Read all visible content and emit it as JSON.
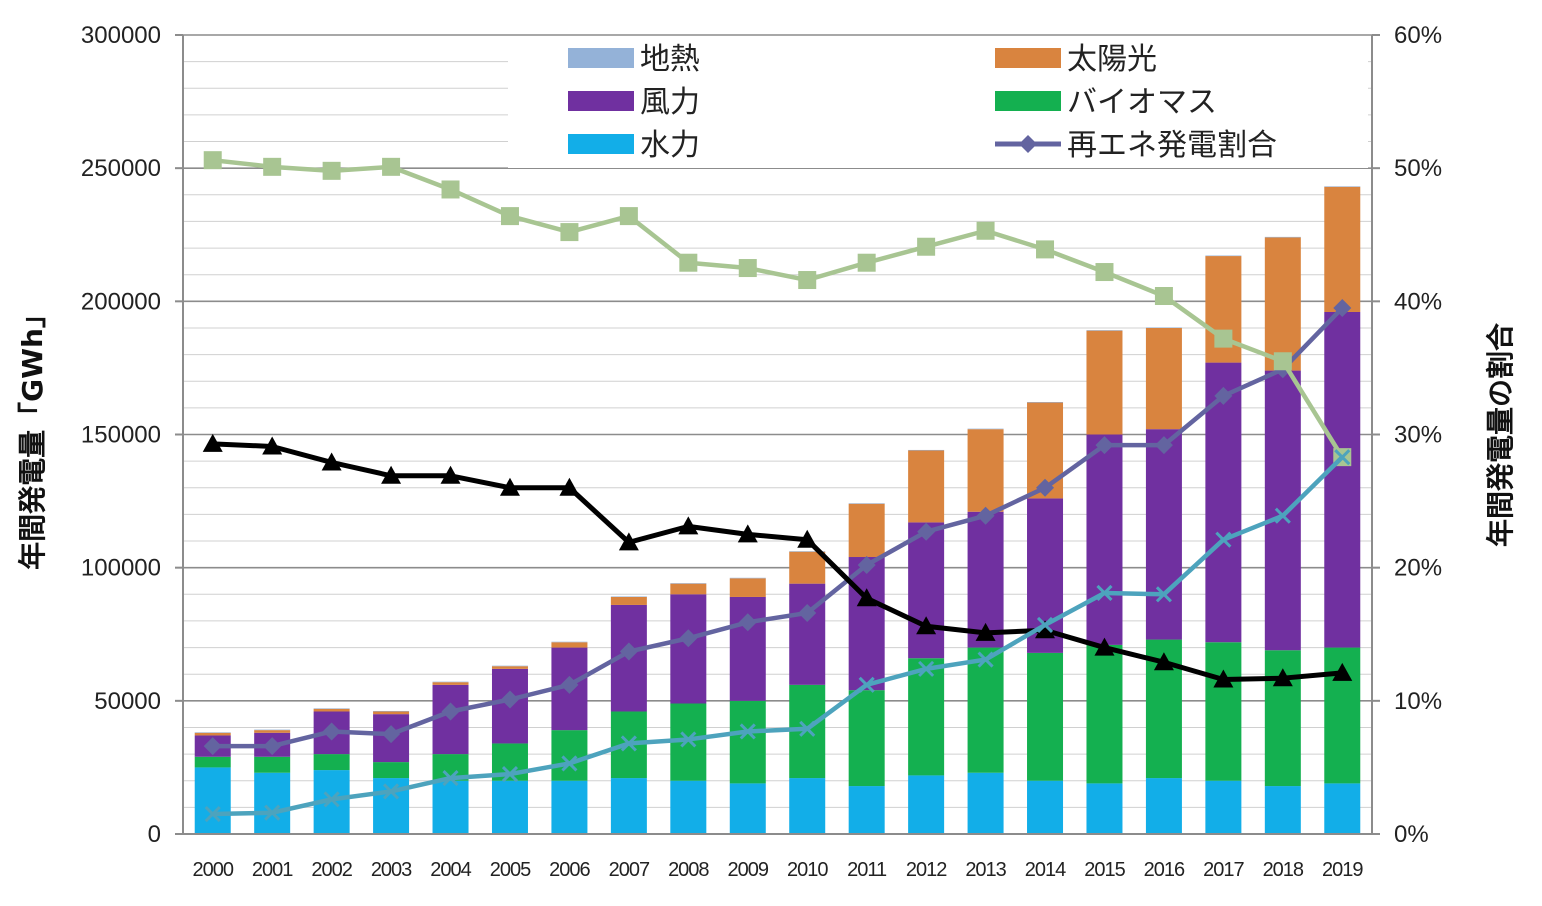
{
  "chart_data": {
    "type": "bar",
    "stacked": true,
    "categories": [
      "2000",
      "2001",
      "2002",
      "2003",
      "2004",
      "2005",
      "2006",
      "2007",
      "2008",
      "2009",
      "2010",
      "2011",
      "2012",
      "2013",
      "2014",
      "2015",
      "2016",
      "2017",
      "2018",
      "2019"
    ],
    "ylabel_left": "年間発電量「GWh」",
    "ylabel_right": "年間発電量の割合",
    "ylim_left": [
      0,
      300000
    ],
    "yticks_left": [
      "0",
      "50000",
      "100000",
      "150000",
      "200000",
      "250000",
      "300000"
    ],
    "ylim_right": [
      0,
      60
    ],
    "yticks_right": [
      "0%",
      "10%",
      "20%",
      "30%",
      "40%",
      "50%",
      "60%"
    ],
    "grid": true,
    "legend_position": "top",
    "series": [
      {
        "name": "水力",
        "color": "#12aee8",
        "values": [
          25000,
          23000,
          24000,
          21000,
          20000,
          20000,
          20000,
          21000,
          20000,
          19000,
          21000,
          18000,
          22000,
          23000,
          20000,
          19000,
          21000,
          20000,
          18000,
          19000
        ]
      },
      {
        "name": "バイオマス",
        "color": "#14b050",
        "values": [
          4000,
          6000,
          6000,
          6000,
          10000,
          14000,
          19000,
          25000,
          29000,
          31000,
          35000,
          36000,
          44000,
          47000,
          48000,
          52000,
          52000,
          52000,
          51000,
          51000
        ]
      },
      {
        "name": "風力",
        "color": "#7030a0",
        "values": [
          8000,
          9000,
          16000,
          18000,
          26000,
          28000,
          31000,
          40000,
          41000,
          39000,
          38000,
          50000,
          51000,
          51000,
          58000,
          79000,
          79000,
          105000,
          105000,
          126000
        ]
      },
      {
        "name": "太陽光",
        "color": "#d9843f",
        "values": [
          1000,
          1000,
          1000,
          1000,
          1000,
          1000,
          2000,
          3000,
          4000,
          7000,
          12000,
          20000,
          27000,
          31000,
          36000,
          39000,
          38000,
          40000,
          50000,
          47000
        ]
      },
      {
        "name": "地熱",
        "color": "#94b2d8",
        "values": [
          200,
          200,
          200,
          200,
          200,
          200,
          200,
          200,
          200,
          200,
          200,
          200,
          200,
          200,
          200,
          200,
          200,
          200,
          200,
          200
        ]
      }
    ],
    "line_series": [
      {
        "name": "再エネ発電割合",
        "color": "#6364a0",
        "marker": "diamond",
        "values": [
          6.6,
          6.6,
          7.7,
          7.5,
          9.2,
          10.1,
          11.2,
          13.7,
          14.7,
          15.9,
          16.6,
          20.2,
          22.7,
          23.9,
          26.0,
          29.2,
          29.2,
          32.9,
          34.9,
          39.5
        ]
      },
      {
        "name": "",
        "color": "#a8c592",
        "marker": "square",
        "values": [
          50.6,
          50.1,
          49.8,
          50.1,
          48.4,
          46.4,
          45.2,
          46.4,
          42.9,
          42.5,
          41.6,
          42.9,
          44.1,
          45.3,
          43.9,
          42.2,
          40.4,
          37.2,
          35.5,
          28.3
        ]
      },
      {
        "name": "",
        "color": "#000000",
        "marker": "triangle",
        "values": [
          29.3,
          29.1,
          27.9,
          26.9,
          26.9,
          26.0,
          26.0,
          21.9,
          23.1,
          22.5,
          22.1,
          17.7,
          15.6,
          15.1,
          15.3,
          14.0,
          12.9,
          11.6,
          11.7,
          12.1
        ]
      },
      {
        "name": "",
        "color": "#4da3bd",
        "marker": "x",
        "values": [
          1.5,
          1.6,
          2.6,
          3.2,
          4.2,
          4.5,
          5.3,
          6.8,
          7.1,
          7.7,
          7.9,
          11.2,
          12.4,
          13.1,
          15.7,
          18.1,
          18.0,
          22.1,
          23.9,
          28.3
        ]
      }
    ]
  }
}
